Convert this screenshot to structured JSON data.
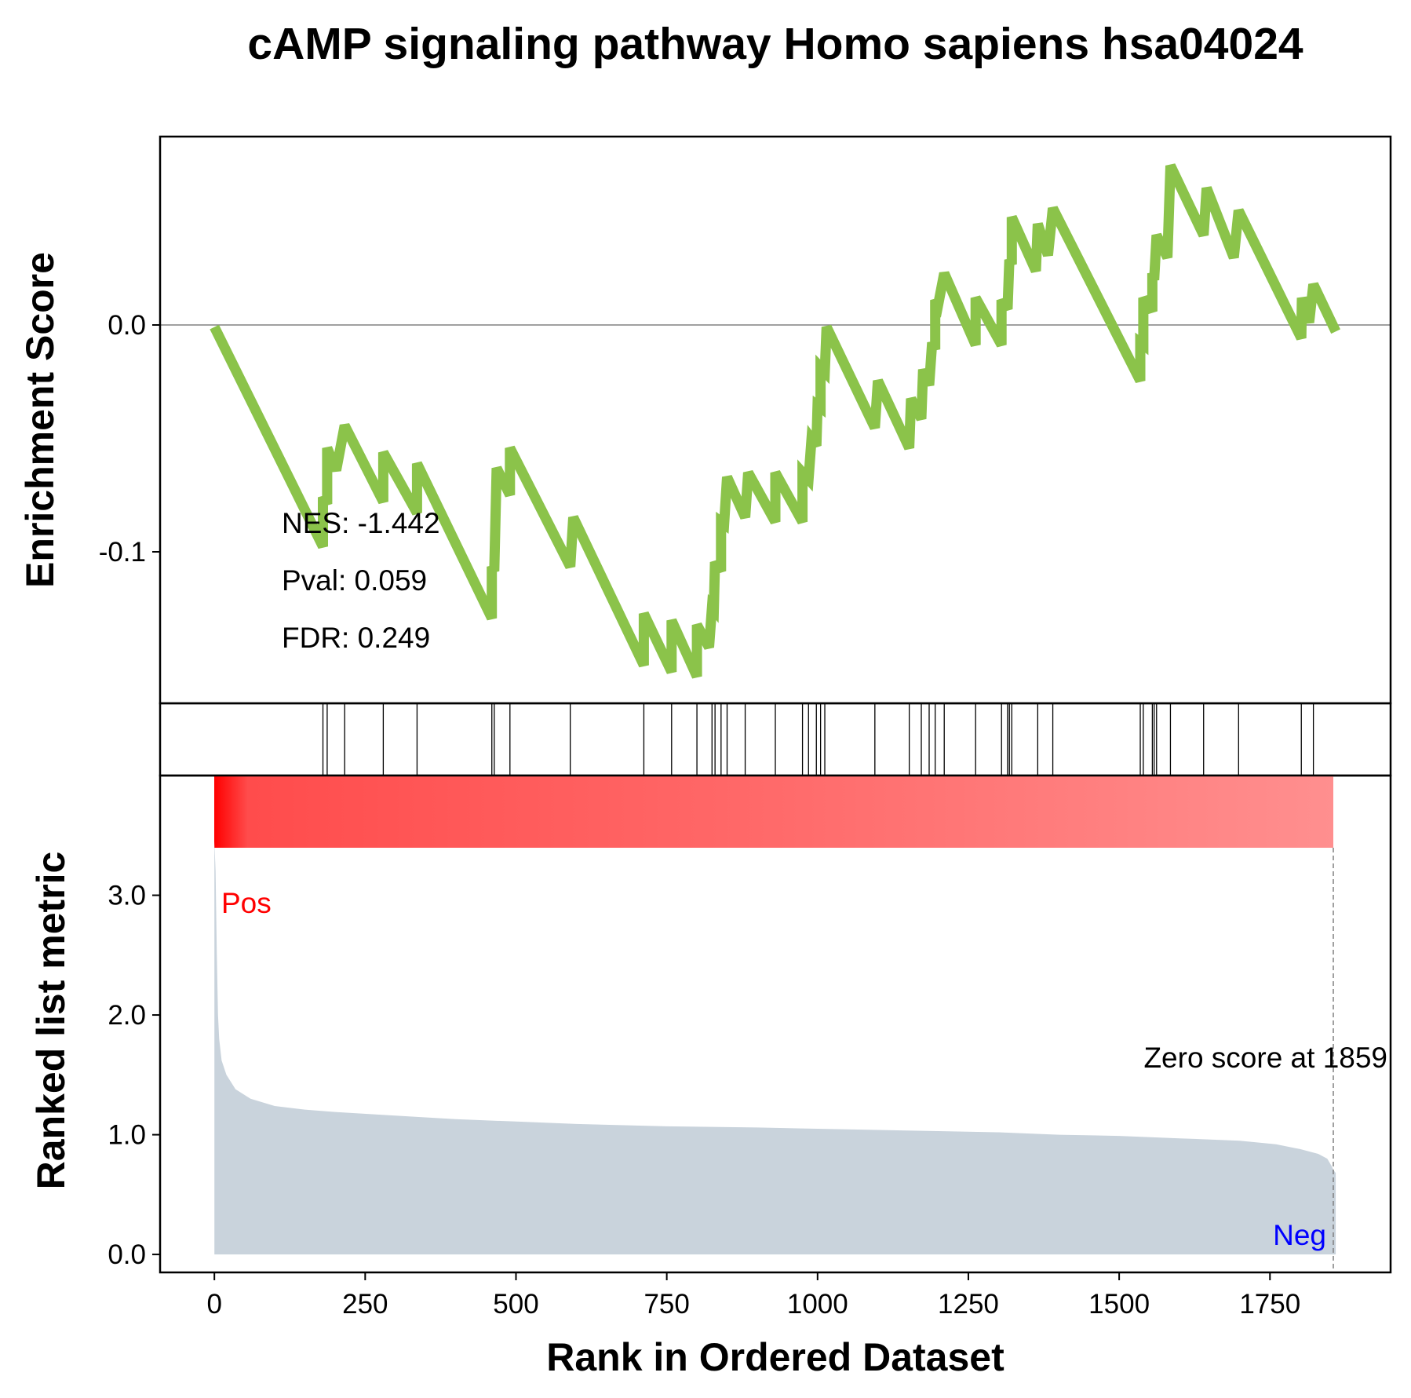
{
  "chart_data": {
    "type": "line",
    "title": "cAMP signaling pathway Homo sapiens hsa04024",
    "xlabel": "Rank in Ordered Dataset",
    "xlim": [
      -90,
      1950
    ],
    "x_ticks": [
      "0",
      "250",
      "500",
      "750",
      "1000",
      "1250",
      "1500",
      "1750"
    ],
    "enrichment": {
      "ylabel": "Enrichment Score",
      "ylim": [
        -0.168,
        0.085
      ],
      "y_ticks": [
        "0.0",
        "-0.1"
      ],
      "line_color": "#8bc34a",
      "points": [
        [
          0,
          0.0
        ],
        [
          180,
          -0.098
        ],
        [
          180,
          -0.076
        ],
        [
          187,
          -0.079
        ],
        [
          187,
          -0.054
        ],
        [
          202,
          -0.064
        ],
        [
          216,
          -0.044
        ],
        [
          280,
          -0.078
        ],
        [
          280,
          -0.056
        ],
        [
          336,
          -0.083
        ],
        [
          336,
          -0.061
        ],
        [
          460,
          -0.13
        ],
        [
          460,
          -0.107
        ],
        [
          464,
          -0.109
        ],
        [
          468,
          -0.063
        ],
        [
          490,
          -0.075
        ],
        [
          490,
          -0.054
        ],
        [
          590,
          -0.107
        ],
        [
          595,
          -0.085
        ],
        [
          712,
          -0.151
        ],
        [
          712,
          -0.128
        ],
        [
          758,
          -0.154
        ],
        [
          758,
          -0.131
        ],
        [
          800,
          -0.156
        ],
        [
          800,
          -0.133
        ],
        [
          820,
          -0.143
        ],
        [
          825,
          -0.125
        ],
        [
          828,
          -0.126
        ],
        [
          830,
          -0.105
        ],
        [
          840,
          -0.109
        ],
        [
          840,
          -0.087
        ],
        [
          845,
          -0.088
        ],
        [
          850,
          -0.067
        ],
        [
          880,
          -0.085
        ],
        [
          885,
          -0.065
        ],
        [
          930,
          -0.087
        ],
        [
          930,
          -0.065
        ],
        [
          975,
          -0.087
        ],
        [
          975,
          -0.065
        ],
        [
          985,
          -0.068
        ],
        [
          990,
          -0.05
        ],
        [
          998,
          -0.053
        ],
        [
          1000,
          -0.035
        ],
        [
          1005,
          -0.036
        ],
        [
          1005,
          -0.018
        ],
        [
          1012,
          -0.02
        ],
        [
          1015,
          0.0
        ],
        [
          1095,
          -0.045
        ],
        [
          1100,
          -0.024
        ],
        [
          1152,
          -0.054
        ],
        [
          1155,
          -0.032
        ],
        [
          1172,
          -0.041
        ],
        [
          1175,
          -0.019
        ],
        [
          1185,
          -0.026
        ],
        [
          1190,
          -0.007
        ],
        [
          1195,
          -0.01
        ],
        [
          1195,
          0.012
        ],
        [
          1200,
          0.01
        ],
        [
          1210,
          0.024
        ],
        [
          1262,
          -0.008
        ],
        [
          1262,
          0.013
        ],
        [
          1305,
          -0.008
        ],
        [
          1305,
          0.012
        ],
        [
          1315,
          0.008
        ],
        [
          1318,
          0.03
        ],
        [
          1322,
          0.028
        ],
        [
          1322,
          0.049
        ],
        [
          1362,
          0.025
        ],
        [
          1365,
          0.046
        ],
        [
          1382,
          0.032
        ],
        [
          1390,
          0.053
        ],
        [
          1535,
          -0.024
        ],
        [
          1535,
          -0.007
        ],
        [
          1540,
          -0.008
        ],
        [
          1540,
          0.013
        ],
        [
          1555,
          0.007
        ],
        [
          1555,
          0.024
        ],
        [
          1558,
          0.021
        ],
        [
          1562,
          0.041
        ],
        [
          1580,
          0.031
        ],
        [
          1585,
          0.072
        ],
        [
          1640,
          0.041
        ],
        [
          1645,
          0.062
        ],
        [
          1690,
          0.031
        ],
        [
          1698,
          0.052
        ],
        [
          1802,
          -0.005
        ],
        [
          1803,
          0.013
        ],
        [
          1815,
          0.002
        ],
        [
          1822,
          0.019
        ],
        [
          1859,
          -0.002
        ]
      ]
    },
    "hits": [
      180,
      187,
      216,
      280,
      336,
      460,
      464,
      490,
      590,
      712,
      758,
      800,
      825,
      830,
      840,
      850,
      880,
      930,
      975,
      985,
      998,
      1005,
      1012,
      1095,
      1152,
      1172,
      1185,
      1195,
      1210,
      1262,
      1305,
      1315,
      1318,
      1322,
      1365,
      1390,
      1535,
      1540,
      1555,
      1558,
      1562,
      1585,
      1640,
      1698,
      1802,
      1822
    ],
    "ranked_metric": {
      "ylabel": "Ranked list metric",
      "ylim": [
        -0.15,
        4.0
      ],
      "y_ticks": [
        "0.0",
        "1.0",
        "2.0",
        "3.0"
      ],
      "fill_color": "#c9d3dc",
      "points": [
        [
          0,
          3.45
        ],
        [
          2,
          3.2
        ],
        [
          4,
          2.5
        ],
        [
          6,
          2.0
        ],
        [
          8,
          1.8
        ],
        [
          12,
          1.62
        ],
        [
          20,
          1.5
        ],
        [
          35,
          1.38
        ],
        [
          60,
          1.3
        ],
        [
          100,
          1.24
        ],
        [
          150,
          1.21
        ],
        [
          200,
          1.19
        ],
        [
          300,
          1.16
        ],
        [
          400,
          1.13
        ],
        [
          500,
          1.11
        ],
        [
          600,
          1.09
        ],
        [
          750,
          1.07
        ],
        [
          900,
          1.06
        ],
        [
          1000,
          1.05
        ],
        [
          1100,
          1.04
        ],
        [
          1200,
          1.03
        ],
        [
          1300,
          1.02
        ],
        [
          1400,
          1.0
        ],
        [
          1500,
          0.99
        ],
        [
          1600,
          0.97
        ],
        [
          1700,
          0.95
        ],
        [
          1760,
          0.92
        ],
        [
          1800,
          0.88
        ],
        [
          1830,
          0.84
        ],
        [
          1845,
          0.8
        ],
        [
          1852,
          0.74
        ],
        [
          1856,
          0.7
        ],
        [
          1859,
          0.68
        ]
      ],
      "zero_score_rank": 1859
    },
    "stats": {
      "nes": "NES: -1.442",
      "pval": "Pval: 0.059",
      "fdr": "FDR: 0.249"
    },
    "annotations": {
      "pos": "Pos",
      "neg": "Neg",
      "zero_score": "Zero score at 1859",
      "pos_color": "#ff0000",
      "neg_color": "#0000ff"
    },
    "gradient_colors": [
      "#ff0000",
      "#ff4c4c",
      "#ff6a6a",
      "#ff8f8f"
    ]
  }
}
